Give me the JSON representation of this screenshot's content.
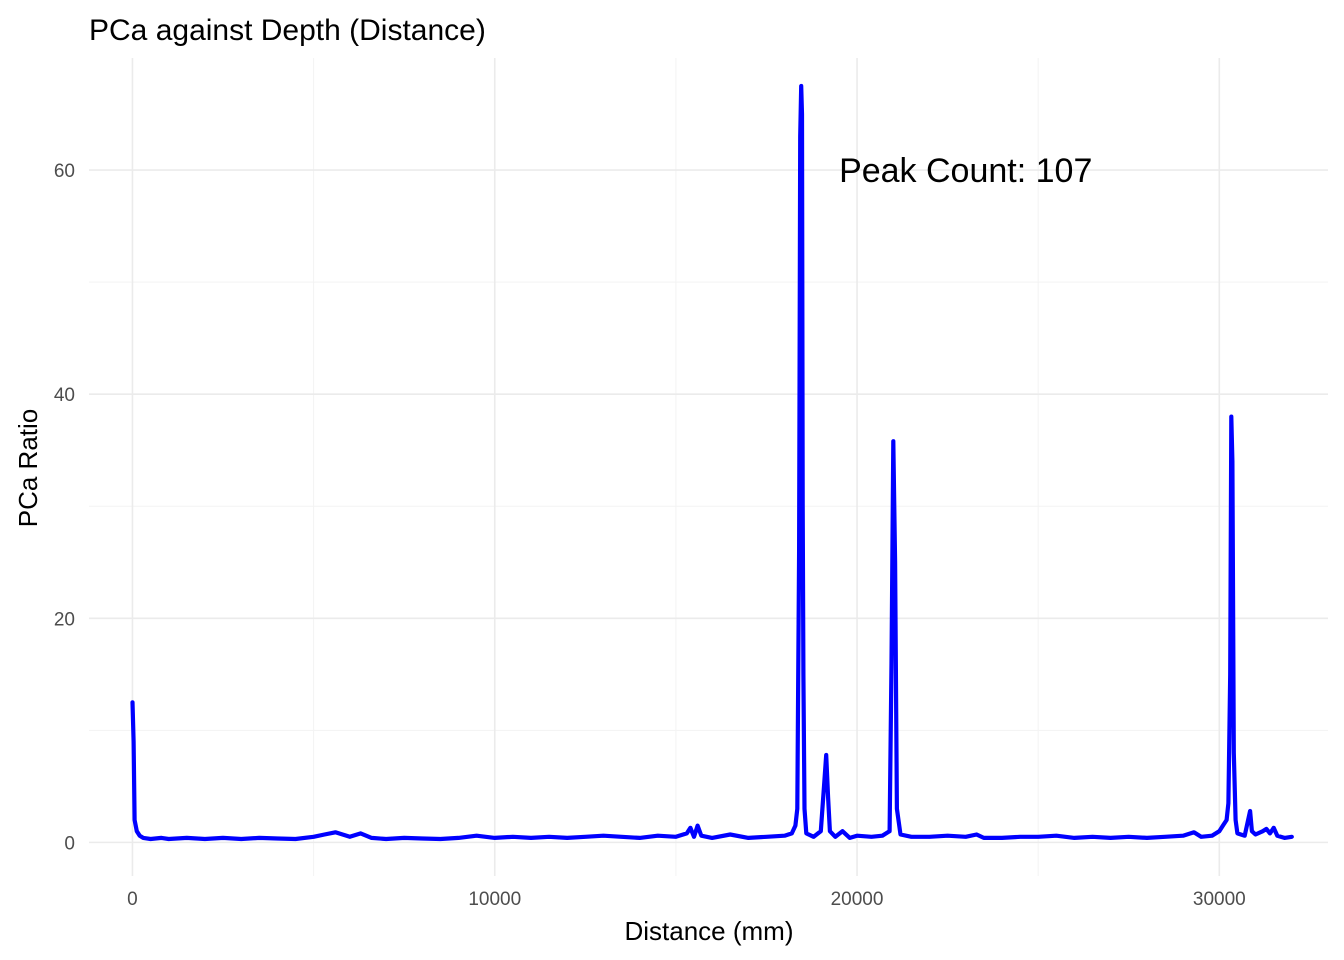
{
  "chart_data": {
    "type": "line",
    "title": "PCa against Depth (Distance)",
    "xlabel": "Distance (mm)",
    "ylabel": "PCa Ratio",
    "xlim": [
      -1200,
      33000
    ],
    "ylim": [
      -3.0,
      70.0
    ],
    "x_ticks": [
      0,
      10000,
      20000,
      30000
    ],
    "x_tick_labels": [
      "0",
      "10000",
      "20000",
      "30000"
    ],
    "x_minor_ticks": [
      5000,
      15000,
      25000
    ],
    "y_ticks": [
      0,
      20,
      40,
      60
    ],
    "y_tick_labels": [
      "0",
      "20",
      "40",
      "60"
    ],
    "y_minor_ticks": [
      10,
      30,
      50
    ],
    "grid": true,
    "line_color": "#0000FF",
    "annotation": {
      "text": "Peak Count: 107",
      "x": 23000,
      "y": 60
    },
    "series": [
      {
        "values": [
          [
            0,
            12.5
          ],
          [
            30,
            9.0
          ],
          [
            60,
            2.0
          ],
          [
            120,
            1.0
          ],
          [
            200,
            0.6
          ],
          [
            300,
            0.4
          ],
          [
            500,
            0.3
          ],
          [
            800,
            0.4
          ],
          [
            1000,
            0.3
          ],
          [
            1500,
            0.4
          ],
          [
            2000,
            0.3
          ],
          [
            2500,
            0.4
          ],
          [
            3000,
            0.3
          ],
          [
            3500,
            0.4
          ],
          [
            4000,
            0.35
          ],
          [
            4500,
            0.3
          ],
          [
            5000,
            0.5
          ],
          [
            5300,
            0.7
          ],
          [
            5600,
            0.9
          ],
          [
            6000,
            0.5
          ],
          [
            6300,
            0.8
          ],
          [
            6600,
            0.4
          ],
          [
            7000,
            0.3
          ],
          [
            7500,
            0.4
          ],
          [
            8000,
            0.35
          ],
          [
            8500,
            0.3
          ],
          [
            9000,
            0.4
          ],
          [
            9500,
            0.6
          ],
          [
            10000,
            0.4
          ],
          [
            10500,
            0.5
          ],
          [
            11000,
            0.4
          ],
          [
            11500,
            0.5
          ],
          [
            12000,
            0.4
          ],
          [
            12500,
            0.5
          ],
          [
            13000,
            0.6
          ],
          [
            13500,
            0.5
          ],
          [
            14000,
            0.4
          ],
          [
            14500,
            0.6
          ],
          [
            15000,
            0.5
          ],
          [
            15300,
            0.8
          ],
          [
            15400,
            1.3
          ],
          [
            15500,
            0.5
          ],
          [
            15600,
            1.5
          ],
          [
            15700,
            0.6
          ],
          [
            16000,
            0.4
          ],
          [
            16500,
            0.7
          ],
          [
            17000,
            0.4
          ],
          [
            17500,
            0.5
          ],
          [
            18000,
            0.6
          ],
          [
            18200,
            0.8
          ],
          [
            18300,
            1.5
          ],
          [
            18350,
            3.0
          ],
          [
            18400,
            26.0
          ],
          [
            18430,
            63.0
          ],
          [
            18460,
            67.5
          ],
          [
            18480,
            65.0
          ],
          [
            18500,
            30.0
          ],
          [
            18520,
            15.0
          ],
          [
            18550,
            3.0
          ],
          [
            18600,
            0.8
          ],
          [
            18800,
            0.5
          ],
          [
            19000,
            1.0
          ],
          [
            19100,
            5.5
          ],
          [
            19150,
            7.8
          ],
          [
            19200,
            4.0
          ],
          [
            19250,
            1.0
          ],
          [
            19400,
            0.5
          ],
          [
            19600,
            1.0
          ],
          [
            19800,
            0.4
          ],
          [
            20000,
            0.6
          ],
          [
            20400,
            0.5
          ],
          [
            20700,
            0.6
          ],
          [
            20900,
            1.0
          ],
          [
            20950,
            16.0
          ],
          [
            21000,
            35.8
          ],
          [
            21050,
            25.0
          ],
          [
            21100,
            3.0
          ],
          [
            21200,
            0.7
          ],
          [
            21500,
            0.5
          ],
          [
            22000,
            0.5
          ],
          [
            22500,
            0.6
          ],
          [
            23000,
            0.5
          ],
          [
            23300,
            0.7
          ],
          [
            23500,
            0.4
          ],
          [
            24000,
            0.4
          ],
          [
            24500,
            0.5
          ],
          [
            25000,
            0.5
          ],
          [
            25500,
            0.6
          ],
          [
            26000,
            0.4
          ],
          [
            26500,
            0.5
          ],
          [
            27000,
            0.4
          ],
          [
            27500,
            0.5
          ],
          [
            28000,
            0.4
          ],
          [
            28500,
            0.5
          ],
          [
            29000,
            0.6
          ],
          [
            29300,
            0.9
          ],
          [
            29500,
            0.5
          ],
          [
            29800,
            0.6
          ],
          [
            30000,
            1.0
          ],
          [
            30100,
            1.5
          ],
          [
            30200,
            2.0
          ],
          [
            30250,
            3.5
          ],
          [
            30300,
            15.0
          ],
          [
            30330,
            38.0
          ],
          [
            30360,
            34.0
          ],
          [
            30400,
            8.0
          ],
          [
            30450,
            2.0
          ],
          [
            30500,
            0.8
          ],
          [
            30700,
            0.6
          ],
          [
            30850,
            2.8
          ],
          [
            30900,
            1.0
          ],
          [
            31000,
            0.7
          ],
          [
            31200,
            1.0
          ],
          [
            31300,
            1.2
          ],
          [
            31400,
            0.8
          ],
          [
            31500,
            1.3
          ],
          [
            31600,
            0.6
          ],
          [
            31800,
            0.4
          ],
          [
            32000,
            0.5
          ]
        ]
      }
    ]
  }
}
